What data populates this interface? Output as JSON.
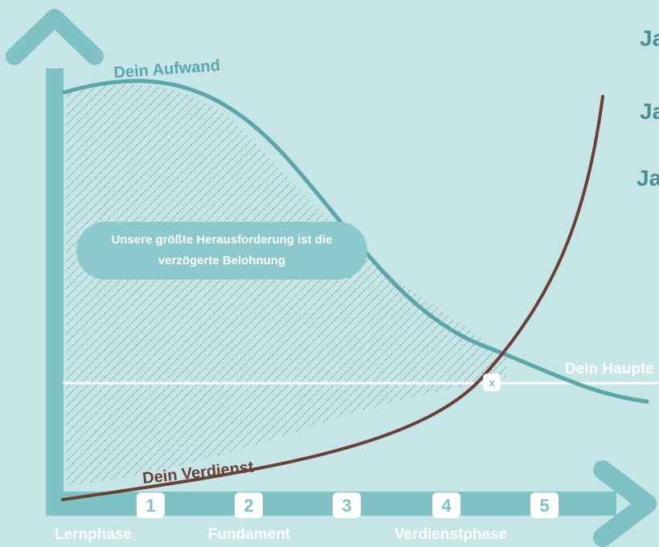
{
  "labels": {
    "effort": "Dein Aufwand",
    "earnings": "Dein Verdienst",
    "main_income": "Dein Haupte",
    "crossing_mark": "x"
  },
  "callout": {
    "line1": "Unsere größte Herausforderung ist die",
    "line2": "verzögerte Belohnung"
  },
  "right_text": [
    "Ja",
    "Ja",
    "Ja"
  ],
  "steps": [
    "1",
    "2",
    "3",
    "4",
    "5"
  ],
  "phases": [
    "Lernphase",
    "Fundament",
    "Verdienstphase"
  ],
  "colors": {
    "background": "#c6e5e7",
    "axis": "#7ec2c6",
    "effort_curve": "#5aa6aa",
    "earnings_curve": "#6a4136",
    "income_line": "#ffffff",
    "callout_fill": "#8cc9cc",
    "hatch": "#4a5a5c"
  }
}
